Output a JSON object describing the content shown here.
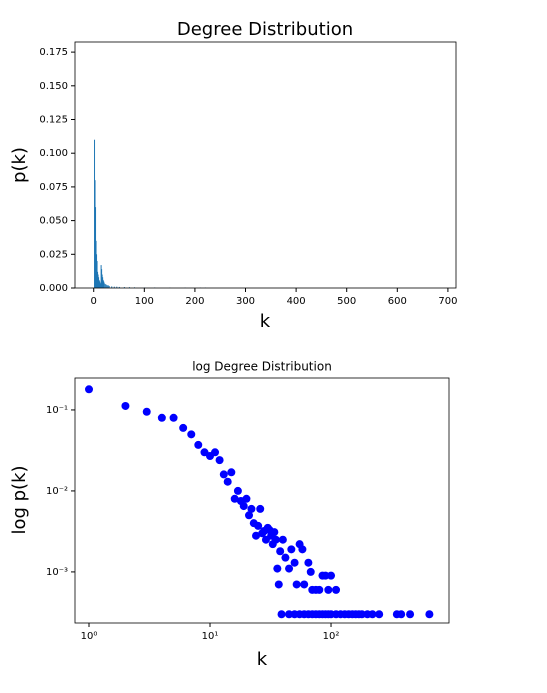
{
  "chart_data": [
    {
      "type": "bar",
      "title": "Degree Distribution",
      "xlabel": "k",
      "ylabel": "p(k)",
      "color": "#1f77b4",
      "x": [
        1,
        2,
        3,
        4,
        5,
        6,
        7,
        8,
        9,
        10,
        11,
        12,
        13,
        14,
        15,
        16,
        17,
        18,
        19,
        20,
        22,
        24,
        26,
        28,
        30,
        35,
        40,
        45,
        50,
        60,
        70,
        80,
        100,
        120,
        150,
        180,
        210,
        220
      ],
      "values": [
        0.11,
        0.08,
        0.06,
        0.035,
        0.025,
        0.02,
        0.012,
        0.01,
        0.008,
        0.006,
        0.005,
        0.004,
        0.003,
        0.017,
        0.014,
        0.01,
        0.008,
        0.006,
        0.005,
        0.004,
        0.003,
        0.0025,
        0.002,
        0.002,
        0.0015,
        0.0012,
        0.001,
        0.001,
        0.0008,
        0.0007,
        0.0006,
        0.0005,
        0.0004,
        0.0004,
        0.0003,
        0.0003,
        0.0003,
        0.0003
      ],
      "xlim": [
        -37,
        716
      ],
      "ylim": [
        0,
        0.1825
      ],
      "xticks": [
        0,
        100,
        200,
        300,
        400,
        500,
        600,
        700
      ],
      "yticks": [
        {
          "value": 0,
          "label": "0.000"
        },
        {
          "value": 0.025,
          "label": "0.025"
        },
        {
          "value": 0.05,
          "label": "0.050"
        },
        {
          "value": 0.075,
          "label": "0.075"
        },
        {
          "value": 0.1,
          "label": "0.100"
        },
        {
          "value": 0.125,
          "label": "0.125"
        },
        {
          "value": 0.15,
          "label": "0.150"
        },
        {
          "value": 0.175,
          "label": "0.175"
        }
      ]
    },
    {
      "type": "scatter",
      "title": "log Degree Distribution",
      "xlabel": "k",
      "ylabel": "log p(k)",
      "color": "#0000ff",
      "xscale": "log",
      "yscale": "log",
      "x": [
        1,
        2,
        3,
        4,
        5,
        6,
        7,
        8,
        9,
        10,
        11,
        12,
        13,
        14,
        15,
        16,
        17,
        18,
        19,
        20,
        21,
        22,
        23,
        24,
        25,
        26,
        27,
        28,
        29,
        30,
        31,
        32,
        33,
        34,
        35,
        36,
        37,
        38,
        40,
        42,
        45,
        47,
        50,
        52,
        55,
        58,
        60,
        65,
        68,
        70,
        75,
        80,
        85,
        90,
        95,
        100,
        110,
        39,
        45,
        50,
        55,
        60,
        65,
        70,
        75,
        80,
        85,
        90,
        95,
        100,
        110,
        120,
        130,
        140,
        150,
        160,
        170,
        180,
        200,
        220,
        250,
        350,
        380,
        450,
        650
      ],
      "values": [
        0.18,
        0.112,
        0.095,
        0.08,
        0.08,
        0.06,
        0.05,
        0.037,
        0.03,
        0.027,
        0.03,
        0.024,
        0.016,
        0.013,
        0.017,
        0.008,
        0.01,
        0.0075,
        0.0065,
        0.008,
        0.005,
        0.006,
        0.004,
        0.0028,
        0.0037,
        0.006,
        0.003,
        0.0032,
        0.0025,
        0.0035,
        0.0033,
        0.0028,
        0.0022,
        0.0031,
        0.0025,
        0.0011,
        0.0007,
        0.0018,
        0.0025,
        0.0015,
        0.0011,
        0.0019,
        0.0013,
        0.0007,
        0.0022,
        0.0019,
        0.0007,
        0.0013,
        0.001,
        0.0006,
        0.0006,
        0.0006,
        0.0009,
        0.0009,
        0.0006,
        0.0009,
        0.0006,
        0.0003,
        0.0003,
        0.0003,
        0.0003,
        0.0003,
        0.0003,
        0.0003,
        0.0003,
        0.0003,
        0.0003,
        0.0003,
        0.0003,
        0.0003,
        0.0003,
        0.0003,
        0.0003,
        0.0003,
        0.0003,
        0.0003,
        0.0003,
        0.0003,
        0.0003,
        0.0003,
        0.0003,
        0.0003,
        0.0003,
        0.0003,
        0.0003
      ],
      "xlim": [
        0.766,
        944
      ],
      "ylim": [
        0.000234,
        0.248
      ],
      "xticks": [
        {
          "value": 1,
          "label": "10⁰"
        },
        {
          "value": 10,
          "label": "10¹"
        },
        {
          "value": 100,
          "label": "10²"
        }
      ],
      "yticks": [
        {
          "value": 0.001,
          "label": "10⁻³"
        },
        {
          "value": 0.01,
          "label": "10⁻²"
        },
        {
          "value": 0.1,
          "label": "10⁻¹"
        }
      ]
    }
  ]
}
